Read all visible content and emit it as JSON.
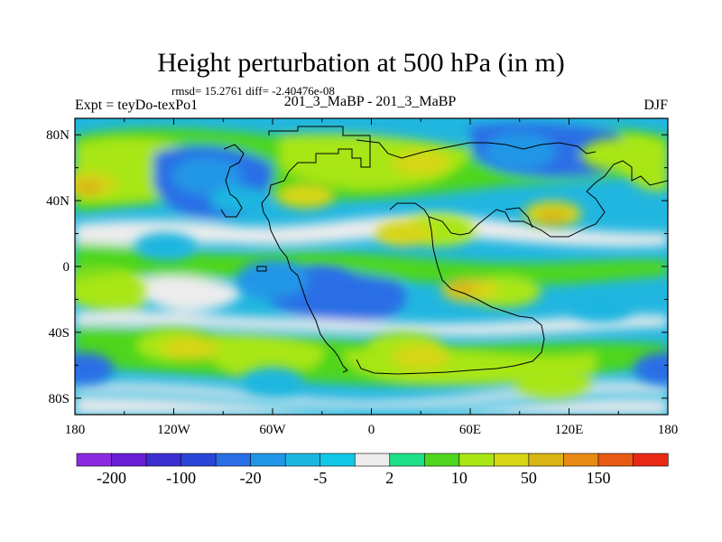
{
  "chart_data": {
    "type": "heatmap",
    "title": "Height perturbation at 500 hPa (in m)",
    "stats_text": "rmsd= 15.2761 diff= -2.40476e-08",
    "left_label": "Expt = teyDo-texPo1",
    "center_label": "201_3_MaBP - 201_3_MaBP",
    "right_label": "DJF",
    "xlim": [
      -180,
      180
    ],
    "ylim": [
      -90,
      90
    ],
    "x_ticks": [
      {
        "value": -180,
        "label": "180"
      },
      {
        "value": -120,
        "label": "120W"
      },
      {
        "value": -60,
        "label": "60W"
      },
      {
        "value": 0,
        "label": "0"
      },
      {
        "value": 60,
        "label": "60E"
      },
      {
        "value": 120,
        "label": "120E"
      },
      {
        "value": 180,
        "label": "180"
      }
    ],
    "y_ticks": [
      {
        "value": 80,
        "label": "80N"
      },
      {
        "value": 40,
        "label": "40N"
      },
      {
        "value": 0,
        "label": "0"
      },
      {
        "value": -40,
        "label": "40S"
      },
      {
        "value": -80,
        "label": "80S"
      }
    ],
    "colorbar": {
      "colors": [
        "#8a2be2",
        "#6a1fd6",
        "#3c2fd0",
        "#2846d8",
        "#2a6ee6",
        "#2196e6",
        "#1cb6e0",
        "#11c8e6",
        "#ececec",
        "#1ee088",
        "#4ed61e",
        "#a8e614",
        "#d6d614",
        "#d8b414",
        "#e88a14",
        "#e85a14",
        "#e82a14"
      ],
      "labels": [
        {
          "boundary": 1,
          "label": "-200"
        },
        {
          "boundary": 3,
          "label": "-100"
        },
        {
          "boundary": 5,
          "label": "-20"
        },
        {
          "boundary": 7,
          "label": "-5"
        },
        {
          "boundary": 9,
          "label": "2"
        },
        {
          "boundary": 11,
          "label": "10"
        },
        {
          "boundary": 13,
          "label": "50"
        },
        {
          "boundary": 15,
          "label": "150"
        }
      ]
    },
    "regions": [
      {
        "level": 12,
        "lon": -172,
        "lat": 50
      },
      {
        "level": 13,
        "lon": -172,
        "lat": 48
      },
      {
        "level": 4,
        "lon": -97,
        "lat": 52
      },
      {
        "level": 5,
        "lon": -100,
        "lat": 55
      },
      {
        "level": 6,
        "lon": -80,
        "lat": 40
      },
      {
        "level": 12,
        "lon": 30,
        "lat": 63
      },
      {
        "level": 12,
        "lon": -40,
        "lat": 43
      },
      {
        "level": 4,
        "lon": 105,
        "lat": 68
      },
      {
        "level": 5,
        "lon": 90,
        "lat": 70
      },
      {
        "level": 11,
        "lon": 150,
        "lat": 68
      },
      {
        "level": 12,
        "lon": 110,
        "lat": 32
      },
      {
        "level": 13,
        "lon": 110,
        "lat": 30
      },
      {
        "level": 11,
        "lon": 40,
        "lat": 22
      },
      {
        "level": 12,
        "lon": 20,
        "lat": 20
      },
      {
        "level": 6,
        "lon": -125,
        "lat": 12
      },
      {
        "level": 4,
        "lon": -30,
        "lat": -10
      },
      {
        "level": 5,
        "lon": -60,
        "lat": -8
      },
      {
        "level": 10,
        "lon": -165,
        "lat": -12
      },
      {
        "level": 11,
        "lon": -160,
        "lat": -14
      },
      {
        "level": 11,
        "lon": 80,
        "lat": -15
      },
      {
        "level": 12,
        "lon": 60,
        "lat": -14
      },
      {
        "level": 13,
        "lon": 55,
        "lat": -13
      },
      {
        "level": 6,
        "lon": 140,
        "lat": -25
      },
      {
        "level": 11,
        "lon": -120,
        "lat": -48
      },
      {
        "level": 12,
        "lon": -110,
        "lat": -50
      },
      {
        "level": 11,
        "lon": 20,
        "lat": -50
      },
      {
        "level": 12,
        "lon": 30,
        "lat": -55
      },
      {
        "level": 4,
        "lon": -175,
        "lat": -62
      },
      {
        "level": 4,
        "lon": 178,
        "lat": -62
      },
      {
        "level": 6,
        "lon": -60,
        "lat": -70
      },
      {
        "level": 11,
        "lon": 110,
        "lat": -70
      }
    ]
  }
}
